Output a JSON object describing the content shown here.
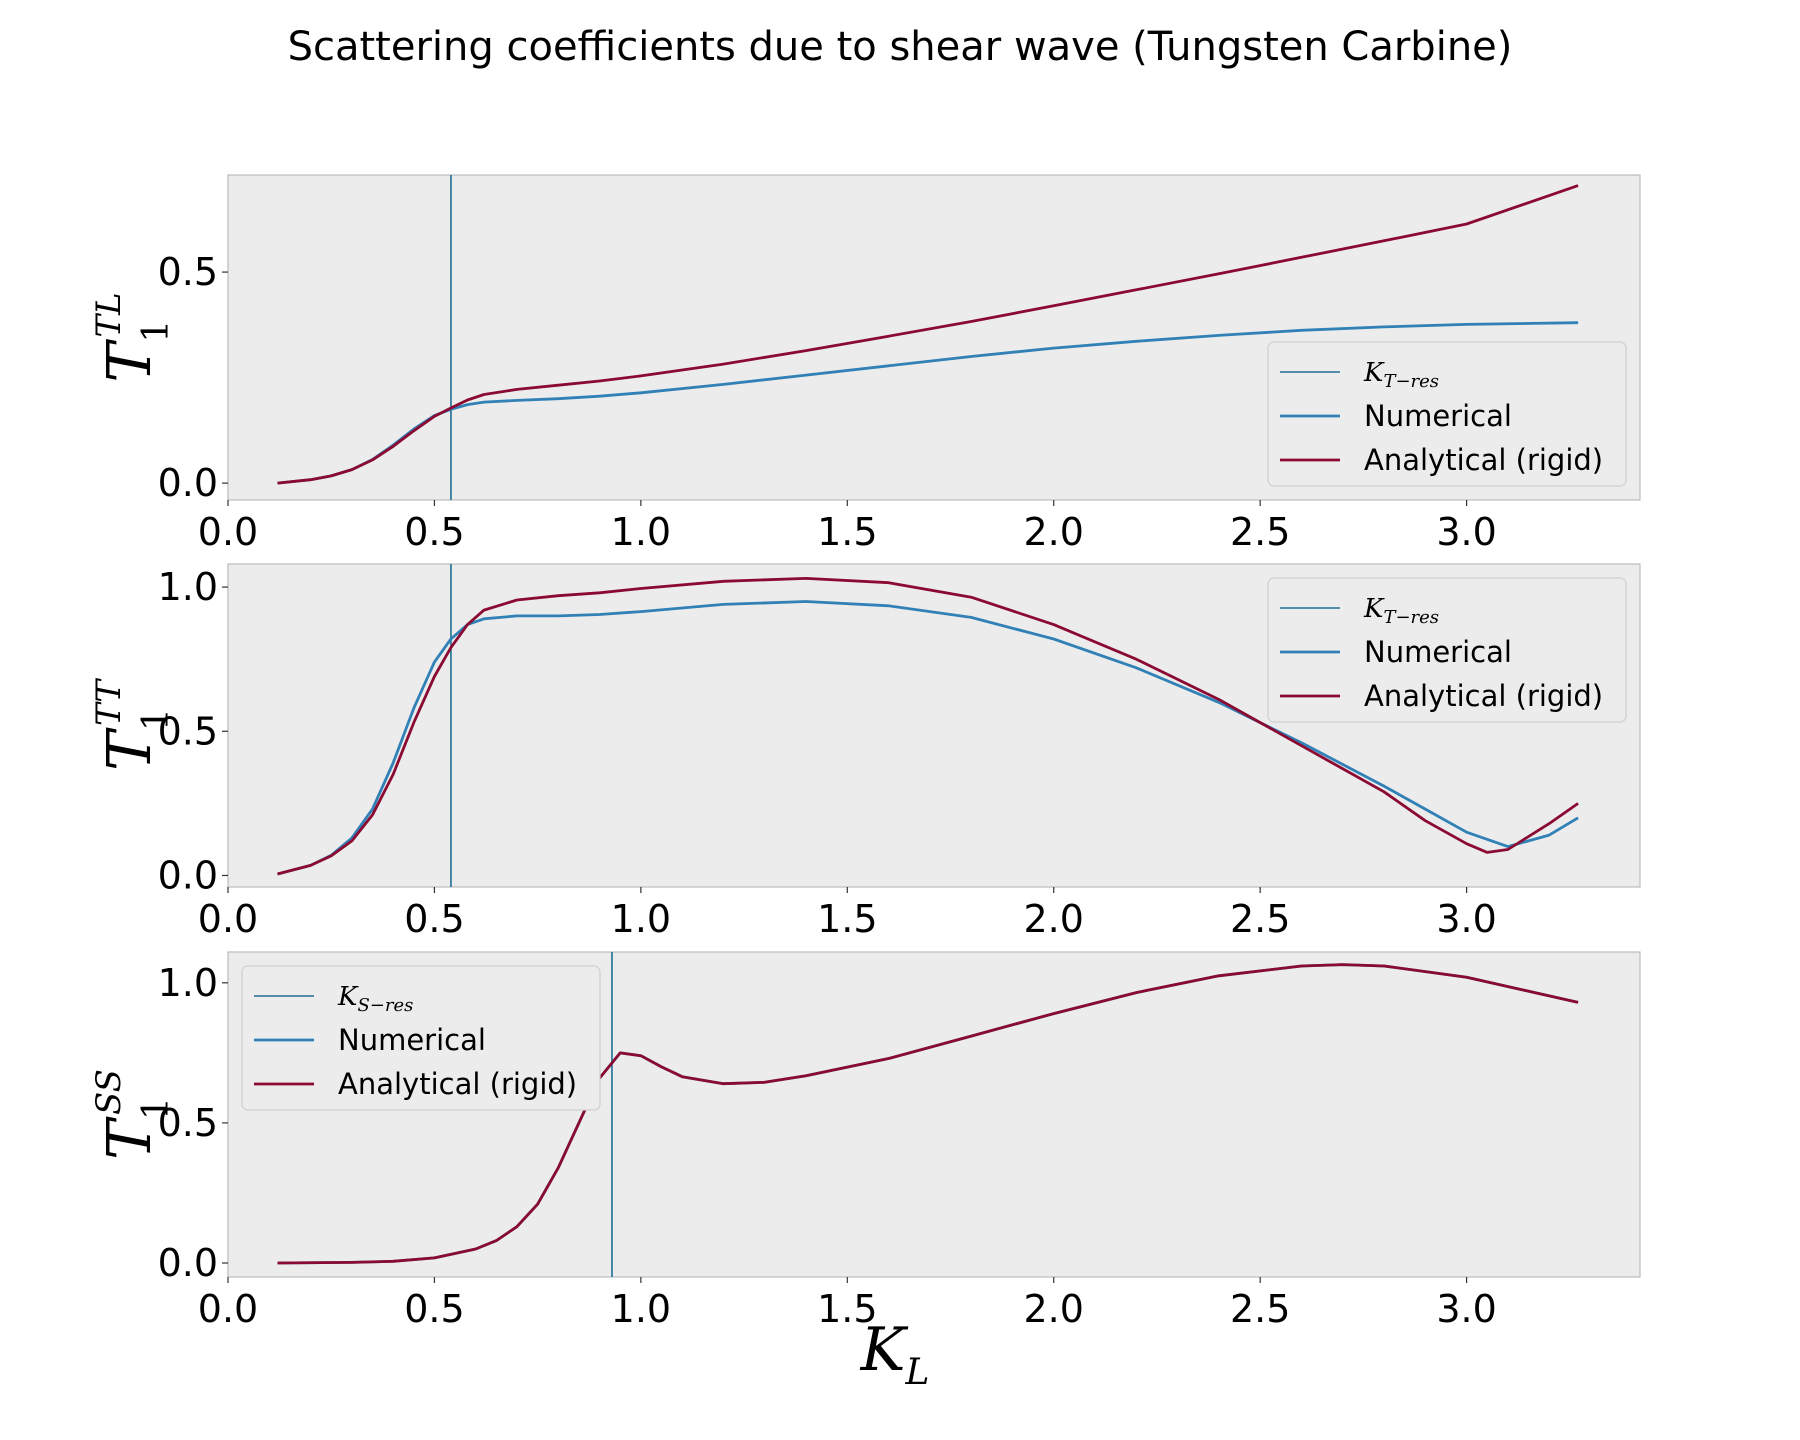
{
  "figure": {
    "title": "Scattering coefficients due to shear wave (Tungsten Carbine)",
    "xlabel_main": "K",
    "xlabel_sub": "L"
  },
  "colors": {
    "numerical": "#3181b7",
    "analytical": "#8b0a32",
    "resonance": "#1f6f95",
    "axes_bg": "#ececec",
    "axes_edge": "#bcbcbc"
  },
  "chart_data": [
    {
      "type": "line",
      "id": "TL",
      "ylabel": {
        "main": "T",
        "sub": "1",
        "sup": "TL"
      },
      "xlim": [
        0.0,
        3.42
      ],
      "ylim": [
        -0.04,
        0.73
      ],
      "xticks": [
        0.0,
        0.5,
        1.0,
        1.5,
        2.0,
        2.5,
        3.0
      ],
      "xtick_labels": [
        "0.0",
        "0.5",
        "1.0",
        "1.5",
        "2.0",
        "2.5",
        "3.0"
      ],
      "yticks": [
        0.0,
        0.5
      ],
      "ytick_labels": [
        "0.0",
        "0.5"
      ],
      "vline": {
        "x": 0.54,
        "label_main": "K",
        "label_sub": "T−res"
      },
      "legend_position": "lower-right",
      "series": [
        {
          "name": "Numerical",
          "key": "numerical",
          "x": [
            0.12,
            0.2,
            0.25,
            0.3,
            0.35,
            0.4,
            0.45,
            0.5,
            0.54,
            0.58,
            0.62,
            0.7,
            0.8,
            0.9,
            1.0,
            1.2,
            1.4,
            1.6,
            1.8,
            2.0,
            2.2,
            2.4,
            2.6,
            2.8,
            3.0,
            3.27
          ],
          "y": [
            0.0,
            0.008,
            0.017,
            0.032,
            0.056,
            0.09,
            0.128,
            0.16,
            0.175,
            0.186,
            0.192,
            0.196,
            0.2,
            0.206,
            0.214,
            0.234,
            0.256,
            0.278,
            0.3,
            0.32,
            0.336,
            0.35,
            0.362,
            0.37,
            0.376,
            0.38
          ]
        },
        {
          "name": "Analytical (rigid)",
          "key": "analytical",
          "x": [
            0.12,
            0.2,
            0.25,
            0.3,
            0.35,
            0.4,
            0.45,
            0.5,
            0.54,
            0.58,
            0.62,
            0.7,
            0.8,
            0.9,
            1.0,
            1.2,
            1.4,
            1.6,
            1.8,
            2.0,
            2.2,
            2.4,
            2.6,
            2.8,
            3.0,
            3.27
          ],
          "y": [
            0.0,
            0.008,
            0.017,
            0.032,
            0.055,
            0.087,
            0.124,
            0.158,
            0.178,
            0.197,
            0.21,
            0.222,
            0.232,
            0.242,
            0.254,
            0.282,
            0.314,
            0.348,
            0.383,
            0.42,
            0.458,
            0.496,
            0.535,
            0.574,
            0.614,
            0.705
          ]
        }
      ]
    },
    {
      "type": "line",
      "id": "TT",
      "ylabel": {
        "main": "T",
        "sub": "1",
        "sup": "TT"
      },
      "xlim": [
        0.0,
        3.42
      ],
      "ylim": [
        -0.04,
        1.08
      ],
      "xticks": [
        0.0,
        0.5,
        1.0,
        1.5,
        2.0,
        2.5,
        3.0
      ],
      "xtick_labels": [
        "0.0",
        "0.5",
        "1.0",
        "1.5",
        "2.0",
        "2.5",
        "3.0"
      ],
      "yticks": [
        0.0,
        0.5,
        1.0
      ],
      "ytick_labels": [
        "0.0",
        "0.5",
        "1.0"
      ],
      "vline": {
        "x": 0.54,
        "label_main": "K",
        "label_sub": "T−res"
      },
      "legend_position": "upper-right",
      "series": [
        {
          "name": "Numerical",
          "key": "numerical",
          "x": [
            0.12,
            0.2,
            0.25,
            0.3,
            0.35,
            0.4,
            0.45,
            0.5,
            0.54,
            0.58,
            0.62,
            0.7,
            0.8,
            0.9,
            1.0,
            1.2,
            1.4,
            1.6,
            1.8,
            2.0,
            2.2,
            2.4,
            2.6,
            2.8,
            2.9,
            3.0,
            3.1,
            3.2,
            3.27
          ],
          "y": [
            0.005,
            0.035,
            0.07,
            0.13,
            0.23,
            0.39,
            0.58,
            0.74,
            0.82,
            0.87,
            0.89,
            0.9,
            0.9,
            0.905,
            0.915,
            0.94,
            0.95,
            0.935,
            0.895,
            0.82,
            0.72,
            0.6,
            0.46,
            0.31,
            0.23,
            0.15,
            0.1,
            0.14,
            0.2
          ]
        },
        {
          "name": "Analytical (rigid)",
          "key": "analytical",
          "x": [
            0.12,
            0.2,
            0.25,
            0.3,
            0.35,
            0.4,
            0.45,
            0.5,
            0.54,
            0.58,
            0.62,
            0.7,
            0.8,
            0.9,
            1.0,
            1.2,
            1.4,
            1.6,
            1.8,
            2.0,
            2.2,
            2.4,
            2.6,
            2.8,
            2.9,
            3.0,
            3.05,
            3.1,
            3.2,
            3.27
          ],
          "y": [
            0.005,
            0.035,
            0.068,
            0.12,
            0.21,
            0.35,
            0.53,
            0.69,
            0.79,
            0.87,
            0.92,
            0.955,
            0.97,
            0.98,
            0.995,
            1.02,
            1.03,
            1.015,
            0.965,
            0.87,
            0.75,
            0.61,
            0.45,
            0.29,
            0.19,
            0.11,
            0.08,
            0.09,
            0.18,
            0.25
          ]
        }
      ]
    },
    {
      "type": "line",
      "id": "SS",
      "ylabel": {
        "main": "T",
        "sub": "1",
        "sup": "SS"
      },
      "xlim": [
        0.0,
        3.42
      ],
      "ylim": [
        -0.05,
        1.11
      ],
      "xticks": [
        0.0,
        0.5,
        1.0,
        1.5,
        2.0,
        2.5,
        3.0
      ],
      "xtick_labels": [
        "0.0",
        "0.5",
        "1.0",
        "1.5",
        "2.0",
        "2.5",
        "3.0"
      ],
      "yticks": [
        0.0,
        0.5,
        1.0
      ],
      "ytick_labels": [
        "0.0",
        "0.5",
        "1.0"
      ],
      "vline": {
        "x": 0.93,
        "label_main": "K",
        "label_sub": "S−res"
      },
      "legend_position": "upper-left",
      "series": [
        {
          "name": "Numerical",
          "key": "numerical",
          "x": [
            0.12,
            0.3,
            0.4,
            0.5,
            0.6,
            0.65,
            0.7,
            0.75,
            0.8,
            0.85,
            0.9,
            0.95,
            1.0,
            1.05,
            1.1,
            1.2,
            1.3,
            1.4,
            1.6,
            1.8,
            2.0,
            2.2,
            2.4,
            2.6,
            2.7,
            2.8,
            3.0,
            3.27
          ],
          "y": [
            0.0,
            0.002,
            0.006,
            0.018,
            0.05,
            0.08,
            0.13,
            0.21,
            0.34,
            0.5,
            0.66,
            0.75,
            0.74,
            0.7,
            0.665,
            0.64,
            0.645,
            0.668,
            0.73,
            0.81,
            0.89,
            0.965,
            1.025,
            1.06,
            1.065,
            1.06,
            1.02,
            0.93
          ]
        },
        {
          "name": "Analytical (rigid)",
          "key": "analytical",
          "x": [
            0.12,
            0.3,
            0.4,
            0.5,
            0.6,
            0.65,
            0.7,
            0.75,
            0.8,
            0.85,
            0.9,
            0.95,
            1.0,
            1.05,
            1.1,
            1.2,
            1.3,
            1.4,
            1.6,
            1.8,
            2.0,
            2.2,
            2.4,
            2.6,
            2.7,
            2.8,
            3.0,
            3.27
          ],
          "y": [
            0.0,
            0.002,
            0.006,
            0.018,
            0.05,
            0.08,
            0.13,
            0.21,
            0.34,
            0.5,
            0.66,
            0.75,
            0.74,
            0.7,
            0.665,
            0.64,
            0.645,
            0.668,
            0.73,
            0.81,
            0.89,
            0.965,
            1.025,
            1.06,
            1.065,
            1.06,
            1.02,
            0.93
          ]
        }
      ]
    }
  ]
}
